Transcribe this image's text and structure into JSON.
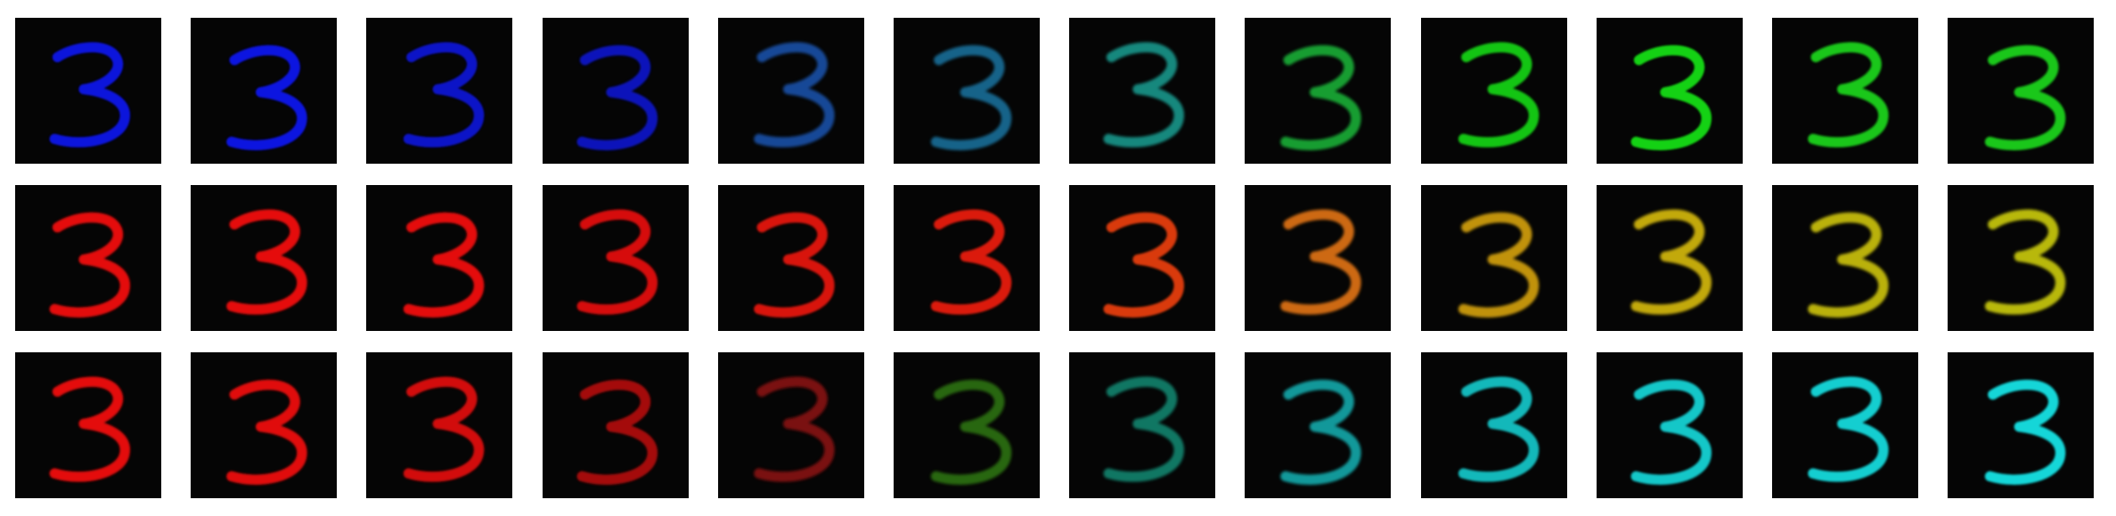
{
  "figure": {
    "glyph": "3",
    "rows": [
      {
        "name": "row-blue-to-green",
        "tiles": [
          {
            "color": "#0b14e8",
            "intensity": 0.95,
            "blur": 0.7
          },
          {
            "color": "#0e16ec",
            "intensity": 0.95,
            "blur": 0.7
          },
          {
            "color": "#0d12dc",
            "intensity": 0.9,
            "blur": 0.7
          },
          {
            "color": "#0c16d4",
            "intensity": 0.88,
            "blur": 0.8
          },
          {
            "color": "#1a5cc0",
            "intensity": 0.78,
            "blur": 1.0
          },
          {
            "color": "#1e84b8",
            "intensity": 0.74,
            "blur": 1.0
          },
          {
            "color": "#1db6a8",
            "intensity": 0.74,
            "blur": 1.0
          },
          {
            "color": "#1cc43c",
            "intensity": 0.8,
            "blur": 0.9
          },
          {
            "color": "#18e016",
            "intensity": 0.88,
            "blur": 0.8
          },
          {
            "color": "#16e416",
            "intensity": 0.92,
            "blur": 0.7
          },
          {
            "color": "#1ad81c",
            "intensity": 0.92,
            "blur": 0.8
          },
          {
            "color": "#1ad81e",
            "intensity": 0.92,
            "blur": 0.8
          }
        ]
      },
      {
        "name": "row-red-to-yellow",
        "tiles": [
          {
            "color": "#f01010",
            "intensity": 0.95,
            "blur": 0.8
          },
          {
            "color": "#f21010",
            "intensity": 0.95,
            "blur": 0.8
          },
          {
            "color": "#f01010",
            "intensity": 0.95,
            "blur": 0.8
          },
          {
            "color": "#e81010",
            "intensity": 0.92,
            "blur": 0.8
          },
          {
            "color": "#ea1410",
            "intensity": 0.92,
            "blur": 0.8
          },
          {
            "color": "#ee1e10",
            "intensity": 0.92,
            "blur": 0.8
          },
          {
            "color": "#f04010",
            "intensity": 0.9,
            "blur": 0.8
          },
          {
            "color": "#ee7a12",
            "intensity": 0.86,
            "blur": 0.9
          },
          {
            "color": "#e0aa10",
            "intensity": 0.86,
            "blur": 0.9
          },
          {
            "color": "#e2c410",
            "intensity": 0.86,
            "blur": 0.9
          },
          {
            "color": "#d8ce10",
            "intensity": 0.86,
            "blur": 0.9
          },
          {
            "color": "#d6d610",
            "intensity": 0.86,
            "blur": 0.9
          }
        ]
      },
      {
        "name": "row-red-to-cyan",
        "tiles": [
          {
            "color": "#f01010",
            "intensity": 0.95,
            "blur": 0.8
          },
          {
            "color": "#ec1010",
            "intensity": 0.95,
            "blur": 0.8
          },
          {
            "color": "#e41010",
            "intensity": 0.92,
            "blur": 0.8
          },
          {
            "color": "#c81010",
            "intensity": 0.82,
            "blur": 0.8
          },
          {
            "color": "#a81212",
            "intensity": 0.72,
            "blur": 0.9
          },
          {
            "color": "#3a9a14",
            "intensity": 0.66,
            "blur": 1.0
          },
          {
            "color": "#16a88c",
            "intensity": 0.7,
            "blur": 1.0
          },
          {
            "color": "#18c2c4",
            "intensity": 0.78,
            "blur": 0.9
          },
          {
            "color": "#16d6d8",
            "intensity": 0.86,
            "blur": 0.8
          },
          {
            "color": "#14dcde",
            "intensity": 0.9,
            "blur": 0.8
          },
          {
            "color": "#12e0e2",
            "intensity": 0.92,
            "blur": 0.8
          },
          {
            "color": "#12e4e6",
            "intensity": 0.94,
            "blur": 0.8
          }
        ]
      }
    ]
  }
}
